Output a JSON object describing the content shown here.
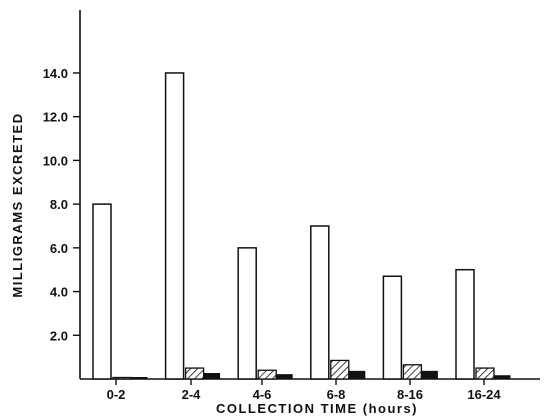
{
  "chart_data": {
    "type": "bar",
    "xlabel": "COLLECTION  TIME  (hours)",
    "ylabel": "MILLIGRAMS  EXCRETED",
    "categories": [
      "0-2",
      "2-4",
      "4-6",
      "6-8",
      "8-16",
      "16-24"
    ],
    "series": [
      {
        "fill": "white",
        "values": [
          8.0,
          14.0,
          6.0,
          7.0,
          4.7,
          5.0
        ]
      },
      {
        "fill": "hatched",
        "values": [
          0.05,
          0.5,
          0.4,
          0.85,
          0.65,
          0.5
        ]
      },
      {
        "fill": "solid",
        "values": [
          0.05,
          0.25,
          0.2,
          0.35,
          0.35,
          0.15
        ]
      }
    ],
    "yticks": [
      2.0,
      4.0,
      6.0,
      8.0,
      10.0,
      12.0,
      14.0
    ],
    "ytick_labels": [
      "2.0",
      "4.0",
      "6.0",
      "8.0",
      "10.0",
      "12.0",
      "14.0"
    ],
    "ylim": [
      0,
      16
    ],
    "grid": false,
    "legend": false
  }
}
